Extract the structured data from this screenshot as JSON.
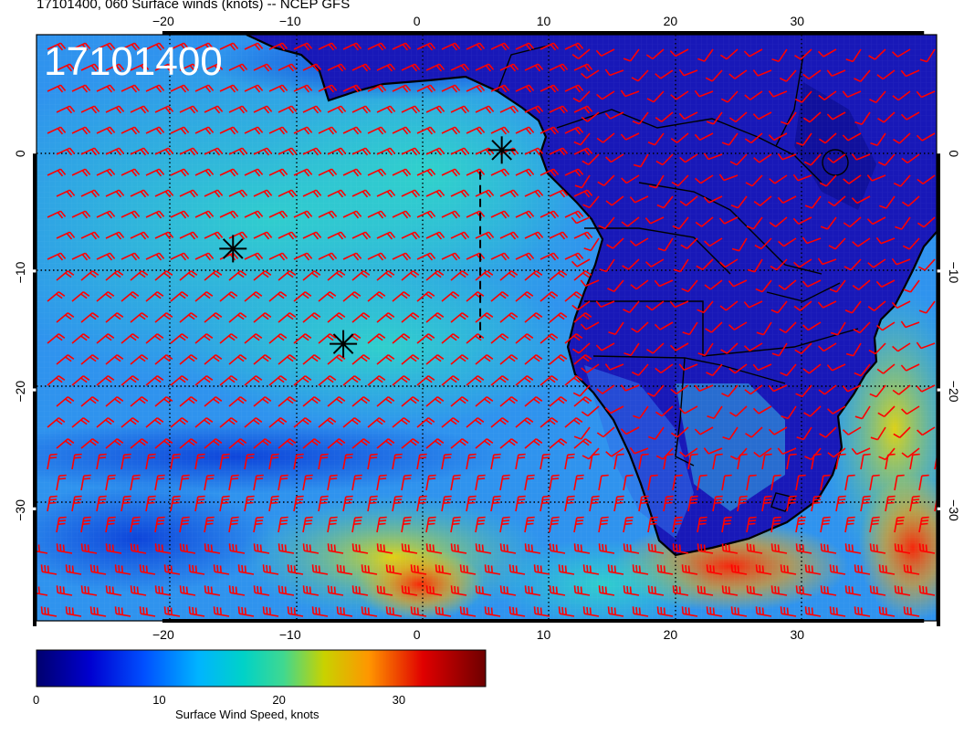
{
  "title": "17101400, 060 Surface winds (knots) -- NCEP GFS",
  "map_stamp": "17101400",
  "axes": {
    "lon_ticks": [
      {
        "value": -20,
        "label": "−20"
      },
      {
        "value": -10,
        "label": "−10"
      },
      {
        "value": 0,
        "label": "0"
      },
      {
        "value": 10,
        "label": "10"
      },
      {
        "value": 20,
        "label": "20"
      },
      {
        "value": 30,
        "label": "30"
      }
    ],
    "lat_ticks": [
      {
        "value": 0,
        "label": "0"
      },
      {
        "value": -10,
        "label": "−10"
      },
      {
        "value": -20,
        "label": "−20"
      },
      {
        "value": -30,
        "label": "−30"
      }
    ],
    "lon_range": [
      -30,
      41
    ],
    "lat_range": [
      -39.3,
      10
    ],
    "grid": "dotted"
  },
  "colorbar": {
    "title": "Surface Wind Speed, knots",
    "range": [
      0,
      37.5
    ],
    "tick_labels": [
      "0",
      "10",
      "20",
      "30"
    ],
    "tick_values": [
      0,
      10,
      20,
      30
    ],
    "colors": [
      "#00008b",
      "#0000ff",
      "#0a78ff",
      "#00c8d8",
      "#22d4a8",
      "#d2d200",
      "#ff9600",
      "#e60000",
      "#780000"
    ]
  },
  "markers": [
    {
      "name": "asterisk",
      "lon": -14.5,
      "lat": -8
    },
    {
      "name": "asterisk",
      "lon": -5.8,
      "lat": -16
    },
    {
      "name": "asterisk",
      "lon": 6.7,
      "lat": 0.3
    }
  ],
  "flight_track": {
    "lon": [
      5.0,
      5.0
    ],
    "lat": [
      -1.5,
      -15.5
    ]
  },
  "colors": {
    "land": "#1414b4",
    "ocean_base": "#2c8cf0",
    "barb": "#ff0000",
    "coastline": "#000000"
  }
}
